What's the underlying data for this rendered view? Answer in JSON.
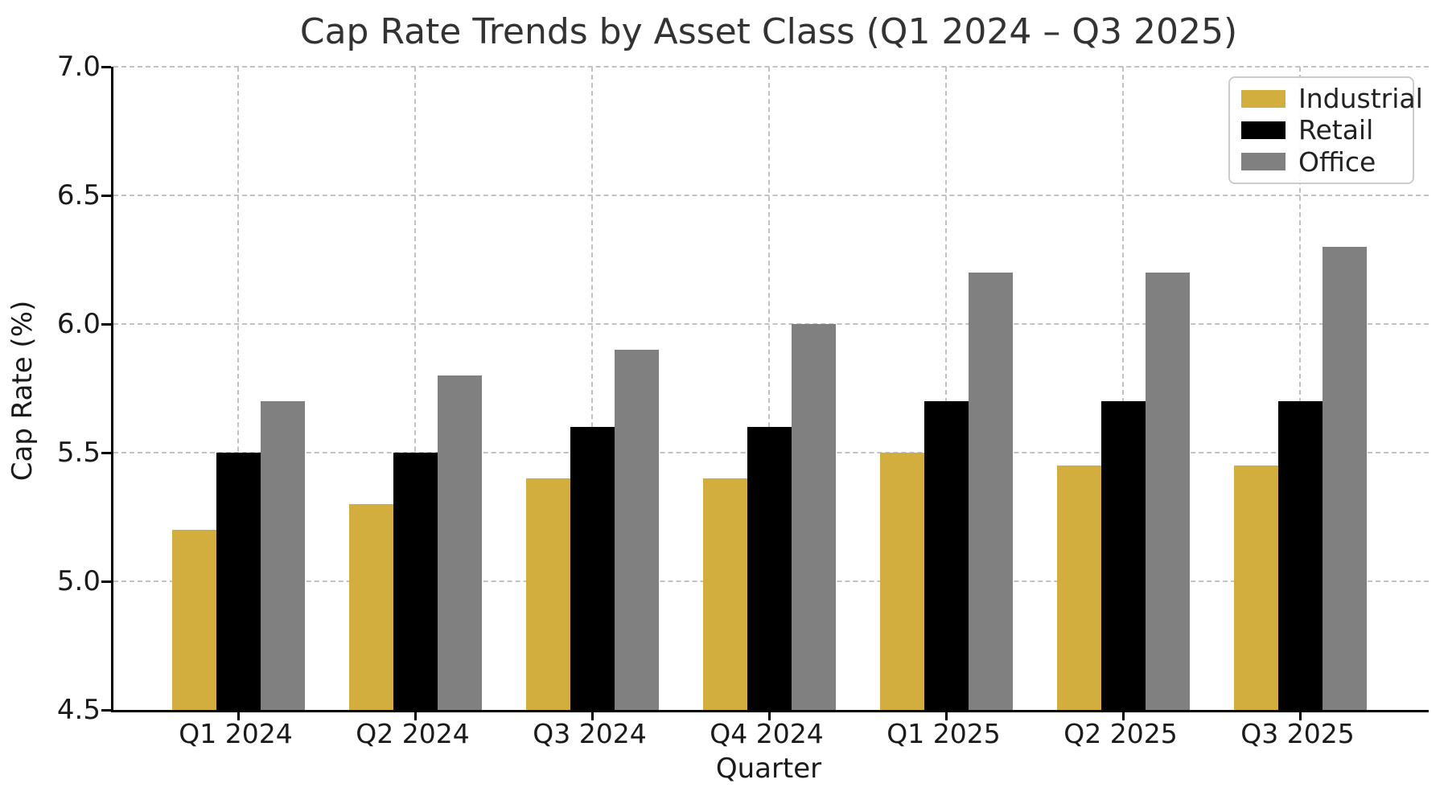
{
  "chart_data": {
    "type": "bar",
    "title": "Cap Rate Trends by Asset Class (Q1 2024 – Q3 2025)",
    "xlabel": "Quarter",
    "ylabel": "Cap Rate (%)",
    "categories": [
      "Q1 2024",
      "Q2 2024",
      "Q3 2024",
      "Q4 2024",
      "Q1 2025",
      "Q2 2025",
      "Q3 2025"
    ],
    "series": [
      {
        "name": "Industrial",
        "color": "#D1AE3D",
        "values": [
          5.2,
          5.3,
          5.4,
          5.4,
          5.5,
          5.45,
          5.45
        ]
      },
      {
        "name": "Retail",
        "color": "#000000",
        "values": [
          5.5,
          5.5,
          5.6,
          5.6,
          5.7,
          5.7,
          5.7
        ]
      },
      {
        "name": "Office",
        "color": "#808080",
        "values": [
          5.7,
          5.8,
          5.9,
          6.0,
          6.2,
          6.2,
          6.3
        ]
      }
    ],
    "ylim": [
      4.5,
      7.0
    ],
    "yticks": [
      4.5,
      5.0,
      5.5,
      6.0,
      6.5,
      7.0
    ],
    "grid": true,
    "legend_position": "upper right"
  }
}
